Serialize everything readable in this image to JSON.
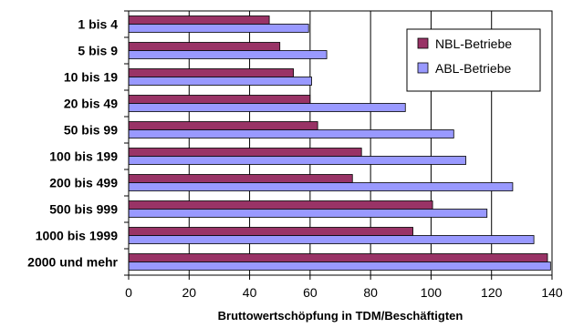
{
  "chart_data": {
    "type": "bar",
    "orientation": "horizontal",
    "categories": [
      "1 bis 4",
      "5 bis 9",
      "10 bis 19",
      "20 bis 49",
      "50 bis 99",
      "100 bis 199",
      "200 bis 499",
      "500 bis 999",
      "1000 bis 1999",
      "2000 und mehr"
    ],
    "series": [
      {
        "name": "NBL-Betriebe",
        "color": "#993366",
        "values": [
          46.5,
          50,
          54.5,
          60,
          62.5,
          77,
          74,
          100.5,
          94,
          138.5
        ]
      },
      {
        "name": "ABL-Betriebe",
        "color": "#9999ff",
        "values": [
          59.5,
          65.5,
          60.5,
          91.5,
          107.5,
          111.5,
          127,
          118.5,
          134,
          139.5
        ]
      }
    ],
    "xlabel": "Bruttowertschöpfung in TDM/Beschäftigten",
    "xlim": [
      0,
      140
    ],
    "xticks": [
      0,
      20,
      40,
      60,
      80,
      100,
      120,
      140
    ],
    "gridlines": "vertical",
    "legend_position": "top-right",
    "legend": [
      "NBL-Betriebe",
      "ABL-Betriebe"
    ]
  }
}
